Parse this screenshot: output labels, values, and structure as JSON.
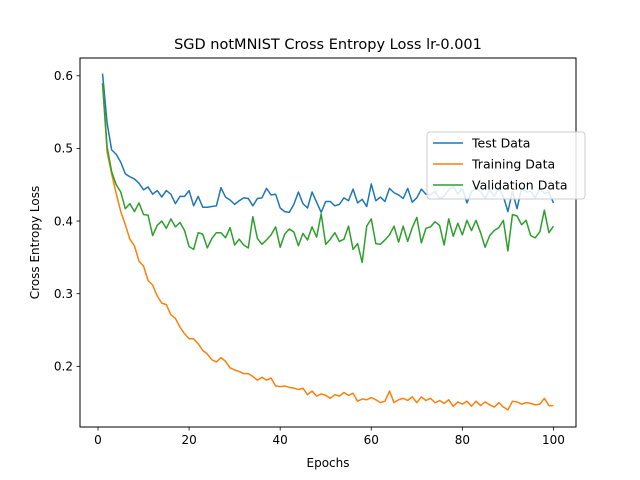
{
  "chart_data": {
    "type": "line",
    "title": "SGD notMNIST Cross Entropy Loss lr-0.001",
    "xlabel": "Epochs",
    "ylabel": "Cross Entropy Loss",
    "xlim": [
      -3.95,
      104.95
    ],
    "ylim": [
      0.1165,
      0.6245
    ],
    "xticks": [
      0,
      20,
      40,
      60,
      80,
      100
    ],
    "yticks": [
      0.2,
      0.3,
      0.4,
      0.5,
      0.6
    ],
    "xtick_labels": [
      "0",
      "20",
      "40",
      "60",
      "80",
      "100"
    ],
    "ytick_labels": [
      "0.2",
      "0.3",
      "0.4",
      "0.5",
      "0.6"
    ],
    "grid": false,
    "legend_position": "center-right",
    "series": [
      {
        "name": "Test Data",
        "color": "#1f77b4",
        "x": [
          1,
          2,
          3,
          4,
          5,
          6,
          7,
          8,
          9,
          10,
          11,
          12,
          13,
          14,
          15,
          16,
          17,
          18,
          19,
          20,
          21,
          22,
          23,
          24,
          25,
          26,
          27,
          28,
          29,
          30,
          31,
          32,
          33,
          34,
          35,
          36,
          37,
          38,
          39,
          40,
          41,
          42,
          43,
          44,
          45,
          46,
          47,
          48,
          49,
          50,
          51,
          52,
          53,
          54,
          55,
          56,
          57,
          58,
          59,
          60,
          61,
          62,
          63,
          64,
          65,
          66,
          67,
          68,
          69,
          70,
          71,
          72,
          73,
          74,
          75,
          76,
          77,
          78,
          79,
          80,
          81,
          82,
          83,
          84,
          85,
          86,
          87,
          88,
          89,
          90,
          91,
          92,
          93,
          94,
          95,
          96,
          97,
          98,
          99,
          100
        ],
        "y": [
          0.603,
          0.535,
          0.498,
          0.492,
          0.481,
          0.465,
          0.461,
          0.458,
          0.452,
          0.443,
          0.447,
          0.437,
          0.442,
          0.433,
          0.442,
          0.437,
          0.424,
          0.434,
          0.434,
          0.442,
          0.421,
          0.434,
          0.419,
          0.419,
          0.42,
          0.421,
          0.446,
          0.433,
          0.429,
          0.423,
          0.428,
          0.432,
          0.431,
          0.421,
          0.431,
          0.432,
          0.445,
          0.436,
          0.437,
          0.418,
          0.413,
          0.412,
          0.423,
          0.44,
          0.424,
          0.418,
          0.44,
          0.426,
          0.412,
          0.427,
          0.427,
          0.421,
          0.423,
          0.432,
          0.428,
          0.444,
          0.425,
          0.43,
          0.42,
          0.451,
          0.428,
          0.433,
          0.427,
          0.445,
          0.439,
          0.436,
          0.431,
          0.445,
          0.426,
          0.432,
          0.444,
          0.437,
          0.436,
          0.441,
          0.431,
          0.434,
          0.443,
          0.448,
          0.437,
          0.445,
          0.425,
          0.44,
          0.446,
          0.44,
          0.432,
          0.443,
          0.434,
          0.445,
          0.434,
          0.413,
          0.441,
          0.417,
          0.445,
          0.44,
          0.441,
          0.432,
          0.445,
          0.438,
          0.44,
          0.425
        ]
      },
      {
        "name": "Training Data",
        "color": "#ff7f0e",
        "x": [
          1,
          2,
          3,
          4,
          5,
          6,
          7,
          8,
          9,
          10,
          11,
          12,
          13,
          14,
          15,
          16,
          17,
          18,
          19,
          20,
          21,
          22,
          23,
          24,
          25,
          26,
          27,
          28,
          29,
          30,
          31,
          32,
          33,
          34,
          35,
          36,
          37,
          38,
          39,
          40,
          41,
          42,
          43,
          44,
          45,
          46,
          47,
          48,
          49,
          50,
          51,
          52,
          53,
          54,
          55,
          56,
          57,
          58,
          59,
          60,
          61,
          62,
          63,
          64,
          65,
          66,
          67,
          68,
          69,
          70,
          71,
          72,
          73,
          74,
          75,
          76,
          77,
          78,
          79,
          80,
          81,
          82,
          83,
          84,
          85,
          86,
          87,
          88,
          89,
          90,
          91,
          92,
          93,
          94,
          95,
          96,
          97,
          98,
          99,
          100
        ],
        "y": [
          0.59,
          0.495,
          0.465,
          0.438,
          0.413,
          0.395,
          0.375,
          0.366,
          0.345,
          0.338,
          0.318,
          0.312,
          0.297,
          0.287,
          0.285,
          0.271,
          0.266,
          0.254,
          0.245,
          0.238,
          0.238,
          0.231,
          0.222,
          0.217,
          0.209,
          0.206,
          0.212,
          0.207,
          0.198,
          0.195,
          0.193,
          0.19,
          0.19,
          0.186,
          0.181,
          0.185,
          0.181,
          0.184,
          0.173,
          0.172,
          0.173,
          0.171,
          0.17,
          0.168,
          0.17,
          0.161,
          0.166,
          0.159,
          0.162,
          0.16,
          0.156,
          0.161,
          0.159,
          0.164,
          0.16,
          0.163,
          0.152,
          0.155,
          0.154,
          0.157,
          0.154,
          0.15,
          0.152,
          0.166,
          0.15,
          0.154,
          0.156,
          0.153,
          0.158,
          0.15,
          0.158,
          0.153,
          0.156,
          0.15,
          0.153,
          0.149,
          0.154,
          0.145,
          0.151,
          0.148,
          0.152,
          0.145,
          0.152,
          0.146,
          0.151,
          0.147,
          0.144,
          0.15,
          0.144,
          0.14,
          0.152,
          0.151,
          0.148,
          0.15,
          0.149,
          0.147,
          0.148,
          0.156,
          0.146,
          0.146
        ]
      },
      {
        "name": "Validation Data",
        "color": "#2ca02c",
        "x": [
          1,
          2,
          3,
          4,
          5,
          6,
          7,
          8,
          9,
          10,
          11,
          12,
          13,
          14,
          15,
          16,
          17,
          18,
          19,
          20,
          21,
          22,
          23,
          24,
          25,
          26,
          27,
          28,
          29,
          30,
          31,
          32,
          33,
          34,
          35,
          36,
          37,
          38,
          39,
          40,
          41,
          42,
          43,
          44,
          45,
          46,
          47,
          48,
          49,
          50,
          51,
          52,
          53,
          54,
          55,
          56,
          57,
          58,
          59,
          60,
          61,
          62,
          63,
          64,
          65,
          66,
          67,
          68,
          69,
          70,
          71,
          72,
          73,
          74,
          75,
          76,
          77,
          78,
          79,
          80,
          81,
          82,
          83,
          84,
          85,
          86,
          87,
          88,
          89,
          90,
          91,
          92,
          93,
          94,
          95,
          96,
          97,
          98,
          99,
          100
        ],
        "y": [
          0.59,
          0.502,
          0.468,
          0.45,
          0.44,
          0.417,
          0.424,
          0.413,
          0.425,
          0.409,
          0.408,
          0.38,
          0.394,
          0.4,
          0.39,
          0.403,
          0.392,
          0.398,
          0.387,
          0.365,
          0.361,
          0.384,
          0.382,
          0.363,
          0.376,
          0.384,
          0.384,
          0.377,
          0.391,
          0.367,
          0.375,
          0.367,
          0.363,
          0.406,
          0.376,
          0.368,
          0.374,
          0.381,
          0.392,
          0.364,
          0.382,
          0.389,
          0.385,
          0.366,
          0.383,
          0.374,
          0.392,
          0.378,
          0.41,
          0.368,
          0.375,
          0.384,
          0.372,
          0.375,
          0.393,
          0.361,
          0.369,
          0.343,
          0.393,
          0.403,
          0.369,
          0.368,
          0.374,
          0.381,
          0.393,
          0.371,
          0.393,
          0.372,
          0.391,
          0.405,
          0.37,
          0.39,
          0.392,
          0.399,
          0.394,
          0.367,
          0.403,
          0.379,
          0.397,
          0.381,
          0.401,
          0.387,
          0.401,
          0.384,
          0.364,
          0.38,
          0.387,
          0.391,
          0.401,
          0.359,
          0.409,
          0.407,
          0.395,
          0.401,
          0.38,
          0.377,
          0.385,
          0.415,
          0.384,
          0.393
        ]
      }
    ]
  }
}
